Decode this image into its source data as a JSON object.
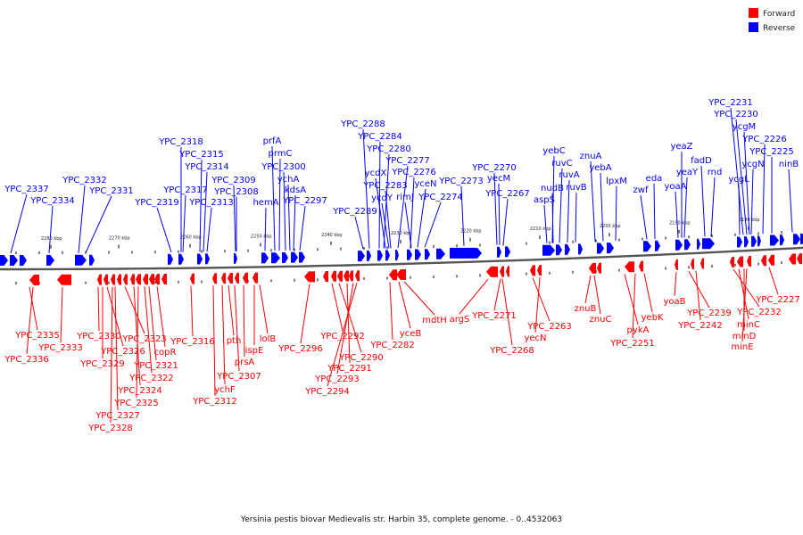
{
  "legend": {
    "forward_label": "Forward",
    "reverse_label": "Reverse",
    "forward_color": "#ff0000",
    "reverse_color": "#0000ff"
  },
  "caption": "Yersinia pestis biovar Medievalis str. Harbin 35, complete genome. - 0..4532063",
  "axis": {
    "tick_labels": [
      "2280 kbp",
      "2270 kbp",
      "2260 kbp",
      "2250 kbp",
      "2240 kbp",
      "2230 kbp",
      "2220 kbp",
      "2210 kbp",
      "2200 kbp",
      "2190 kbp",
      "2180 kbp"
    ]
  },
  "reverse_genes": [
    "YPC_2337",
    "YPC_2334",
    "YPC_2332",
    "YPC_2331",
    "YPC_2319",
    "YPC_2318",
    "YPC_2317",
    "YPC_2315",
    "YPC_2314",
    "YPC_2313",
    "YPC_2309",
    "YPC_2308",
    "hemA",
    "prfA",
    "prmC",
    "YPC_2300",
    "ychA",
    "kdsA",
    "YPC_2297",
    "YPC_2289",
    "YPC_2288",
    "YPC_2284",
    "YPC_2280",
    "ycdX",
    "ycdY",
    "YPC_2283",
    "YPC_2277",
    "YPC_2276",
    "rimJ",
    "yceN",
    "YPC_2274",
    "YPC_2273",
    "YPC_2270",
    "yecM",
    "YPC_2267",
    "aspS",
    "yebC",
    "ruvC",
    "nudB",
    "ruvA",
    "ruvB",
    "znuA",
    "yebA",
    "lpxM",
    "zwf",
    "eda",
    "yeaZ",
    "yeaY",
    "yoaA",
    "fadD",
    "rnd",
    "YPC_2231",
    "YPC_2230",
    "ycgM",
    "ycgL",
    "ycgN",
    "YPC_2226",
    "YPC_2225",
    "ninB"
  ],
  "forward_genes": [
    "YPC_2335",
    "YPC_2336",
    "YPC_2333",
    "YPC_2330",
    "YPC_2329",
    "YPC_2326",
    "YPC_2323",
    "YPC_2327",
    "YPC_2328",
    "YPC_2324",
    "YPC_2325",
    "YPC_2322",
    "YPC_2321",
    "copR",
    "YPC_2316",
    "YPC_2312",
    "ychF",
    "pth",
    "YPC_2307",
    "prsA",
    "ispE",
    "lolB",
    "YPC_2296",
    "YPC_2292",
    "YPC_2290",
    "YPC_2291",
    "YPC_2293",
    "YPC_2294",
    "YPC_2282",
    "yceB",
    "mdtH",
    "argS",
    "YPC_2271",
    "YPC_2268",
    "YPC_2263",
    "yecN",
    "znuB",
    "znuC",
    "pykA",
    "YPC_2251",
    "yebK",
    "yoaB",
    "YPC_2239",
    "YPC_2242",
    "YPC_2232",
    "minC",
    "minD",
    "minE",
    "YPC_2227"
  ]
}
